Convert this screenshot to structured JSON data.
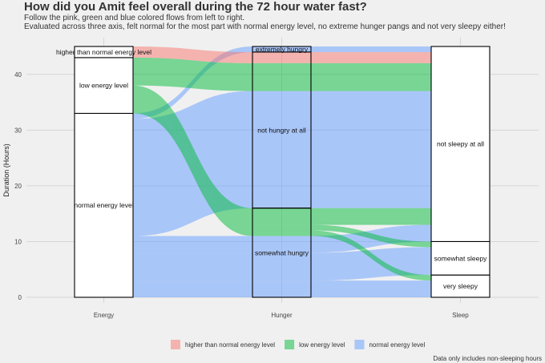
{
  "header": {
    "title": "How did you Amit feel overall during the 72 hour water fast?",
    "subtitle_line1": "Follow the pink, green and blue colored flows from left to right.",
    "subtitle_line2": "Evaluated across three axis, felt normal for the most part with normal energy level, no extreme hunger pangs and not very sleepy either!"
  },
  "caption": "Data only includes non-sleeping hours",
  "colors": {
    "higher": "#F8766D",
    "low": "#00BA38",
    "normal": "#619CFF",
    "background": "#f0f0f0",
    "grid": "#d6d6d6"
  },
  "chart_data": {
    "type": "alluvial",
    "title": "How did you Amit feel overall during the 72 hour water fast?",
    "ylabel": "Duration (Hours)",
    "ylim": [
      0,
      45
    ],
    "yticks": [
      0,
      10,
      20,
      30,
      40
    ],
    "axes": [
      {
        "name": "Energy",
        "strata": [
          {
            "label": "normal energy level",
            "value": 33
          },
          {
            "label": "low energy level",
            "value": 10
          },
          {
            "label": "higher than normal energy level",
            "value": 2
          }
        ]
      },
      {
        "name": "Hunger",
        "strata": [
          {
            "label": "somewhat hungry",
            "value": 16
          },
          {
            "label": "not hungry at all",
            "value": 28
          },
          {
            "label": "extremely hungry",
            "value": 1
          }
        ]
      },
      {
        "name": "Sleep",
        "strata": [
          {
            "label": "very sleepy",
            "value": 4
          },
          {
            "label": "somewhat sleepy",
            "value": 6
          },
          {
            "label": "not sleepy at all",
            "value": 35
          }
        ]
      }
    ],
    "legend": {
      "position": "bottom",
      "entries": [
        {
          "key": "higher",
          "label": "higher than normal energy level"
        },
        {
          "key": "low",
          "label": "low energy level"
        },
        {
          "key": "normal",
          "label": "normal energy level"
        }
      ]
    },
    "flows": [
      {
        "energy": "normal energy level",
        "hunger": "somewhat hungry",
        "sleep": "very sleepy",
        "hours": 3
      },
      {
        "energy": "normal energy level",
        "hunger": "somewhat hungry",
        "sleep": "somewhat sleepy",
        "hours": 5
      },
      {
        "energy": "normal energy level",
        "hunger": "somewhat hungry",
        "sleep": "not sleepy at all",
        "hours": 3
      },
      {
        "energy": "normal energy level",
        "hunger": "not hungry at all",
        "sleep": "not sleepy at all",
        "hours": 21
      },
      {
        "energy": "normal energy level",
        "hunger": "extremely hungry",
        "sleep": "not sleepy at all",
        "hours": 1
      },
      {
        "energy": "low energy level",
        "hunger": "somewhat hungry",
        "sleep": "very sleepy",
        "hours": 1
      },
      {
        "energy": "low energy level",
        "hunger": "somewhat hungry",
        "sleep": "somewhat sleepy",
        "hours": 1
      },
      {
        "energy": "low energy level",
        "hunger": "somewhat hungry",
        "sleep": "not sleepy at all",
        "hours": 3
      },
      {
        "energy": "low energy level",
        "hunger": "not hungry at all",
        "sleep": "not sleepy at all",
        "hours": 5
      },
      {
        "energy": "higher than normal energy level",
        "hunger": "not hungry at all",
        "sleep": "not sleepy at all",
        "hours": 2
      }
    ]
  }
}
